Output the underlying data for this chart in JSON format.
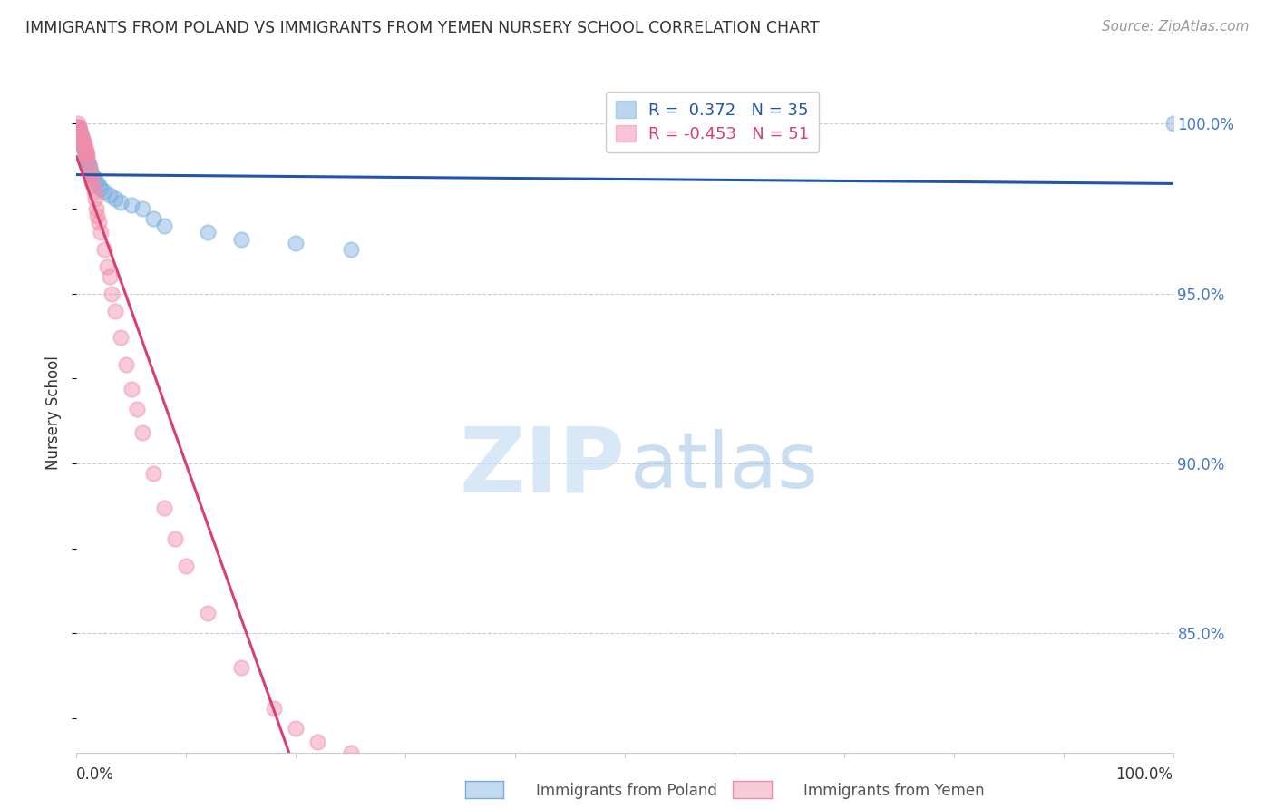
{
  "title": "IMMIGRANTS FROM POLAND VS IMMIGRANTS FROM YEMEN NURSERY SCHOOL CORRELATION CHART",
  "source": "Source: ZipAtlas.com",
  "ylabel": "Nursery School",
  "ytick_labels": [
    "100.0%",
    "95.0%",
    "90.0%",
    "85.0%"
  ],
  "ytick_values": [
    1.0,
    0.95,
    0.9,
    0.85
  ],
  "xlim": [
    0.0,
    1.0
  ],
  "ylim": [
    0.815,
    1.015
  ],
  "legend_poland": "R =  0.372   N = 35",
  "legend_yemen": "R = -0.453   N = 51",
  "poland_color": "#7aadde",
  "yemen_color": "#f08caa",
  "poland_line_color": "#2255aa",
  "yemen_line_color": "#d94070",
  "background_color": "#ffffff",
  "grid_color": "#cccccc",
  "watermark_zip_color": "#c8dff5",
  "watermark_atlas_color": "#a8c8e8",
  "right_tick_color": "#4477cc",
  "poland_x": [
    0.001,
    0.002,
    0.002,
    0.003,
    0.003,
    0.004,
    0.004,
    0.005,
    0.005,
    0.006,
    0.007,
    0.008,
    0.009,
    0.01,
    0.011,
    0.012,
    0.013,
    0.015,
    0.016,
    0.018,
    0.02,
    0.022,
    0.025,
    0.03,
    0.035,
    0.04,
    0.05,
    0.06,
    0.07,
    0.08,
    0.12,
    0.15,
    0.2,
    0.25,
    1.0
  ],
  "poland_y": [
    0.998,
    0.997,
    0.999,
    0.996,
    0.998,
    0.997,
    0.995,
    0.996,
    0.994,
    0.993,
    0.992,
    0.991,
    0.99,
    0.989,
    0.988,
    0.987,
    0.986,
    0.985,
    0.984,
    0.983,
    0.982,
    0.981,
    0.98,
    0.979,
    0.978,
    0.977,
    0.976,
    0.975,
    0.972,
    0.97,
    0.968,
    0.966,
    0.965,
    0.963,
    1.0
  ],
  "yemen_x": [
    0.001,
    0.001,
    0.002,
    0.002,
    0.003,
    0.003,
    0.004,
    0.004,
    0.005,
    0.005,
    0.006,
    0.006,
    0.007,
    0.007,
    0.008,
    0.008,
    0.009,
    0.009,
    0.01,
    0.01,
    0.011,
    0.012,
    0.013,
    0.014,
    0.015,
    0.016,
    0.017,
    0.018,
    0.019,
    0.02,
    0.022,
    0.025,
    0.028,
    0.03,
    0.032,
    0.035,
    0.04,
    0.045,
    0.05,
    0.055,
    0.06,
    0.07,
    0.08,
    0.09,
    0.1,
    0.12,
    0.15,
    0.18,
    0.2,
    0.22,
    0.25
  ],
  "yemen_y": [
    1.0,
    0.999,
    0.998,
    0.999,
    0.997,
    0.998,
    0.996,
    0.997,
    0.995,
    0.996,
    0.994,
    0.995,
    0.993,
    0.994,
    0.992,
    0.993,
    0.991,
    0.992,
    0.99,
    0.991,
    0.988,
    0.986,
    0.985,
    0.983,
    0.982,
    0.98,
    0.978,
    0.975,
    0.973,
    0.971,
    0.968,
    0.963,
    0.958,
    0.955,
    0.95,
    0.945,
    0.937,
    0.929,
    0.922,
    0.916,
    0.909,
    0.897,
    0.887,
    0.878,
    0.87,
    0.856,
    0.84,
    0.828,
    0.822,
    0.818,
    0.815
  ]
}
